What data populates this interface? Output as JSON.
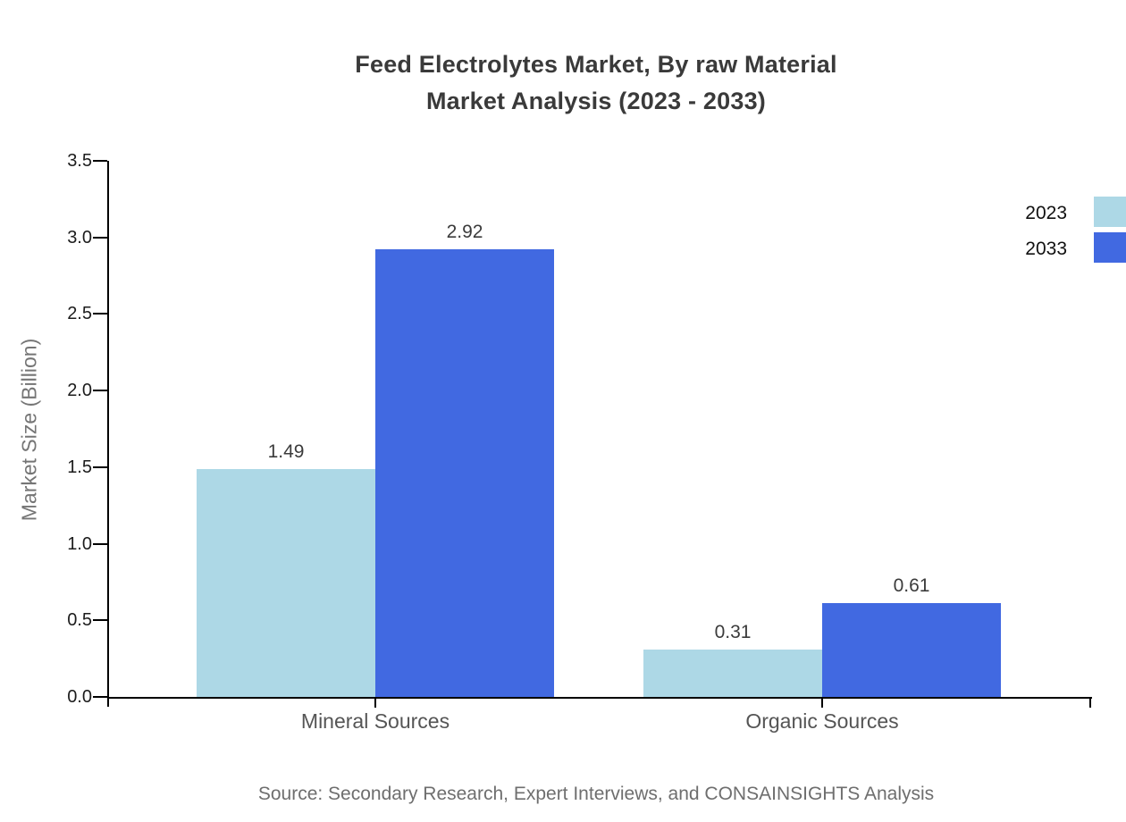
{
  "title": {
    "line1": "Feed Electrolytes Market, By raw Material",
    "line2": "Market Analysis (2023 - 2033)"
  },
  "y_axis": {
    "label": "Market Size (Billion)",
    "ticks": [
      "3.5",
      "3.0",
      "2.5",
      "2.0",
      "1.5",
      "1.0",
      "0.5",
      "0.0"
    ]
  },
  "legend": {
    "items": [
      {
        "label": "2023",
        "color": "#ADD8E6"
      },
      {
        "label": "2033",
        "color": "#4169E1"
      }
    ]
  },
  "source_note": "Source: Secondary Research, Expert Interviews, and CONSAINSIGHTS Analysis",
  "chart_data": {
    "type": "bar",
    "title": "Feed Electrolytes Market, By raw Material Market Analysis (2023 - 2033)",
    "categories": [
      "Mineral Sources",
      "Organic Sources"
    ],
    "series": [
      {
        "name": "2023",
        "color": "#ADD8E6",
        "values": [
          1.49,
          0.31
        ]
      },
      {
        "name": "2033",
        "color": "#4169E1",
        "values": [
          2.92,
          0.61
        ]
      }
    ],
    "xlabel": "",
    "ylabel": "Market Size (Billion)",
    "ylim": [
      0,
      3.5
    ],
    "ytick_step": 0.5,
    "grid": false,
    "value_labels": true,
    "legend_position": "upper right outside"
  }
}
